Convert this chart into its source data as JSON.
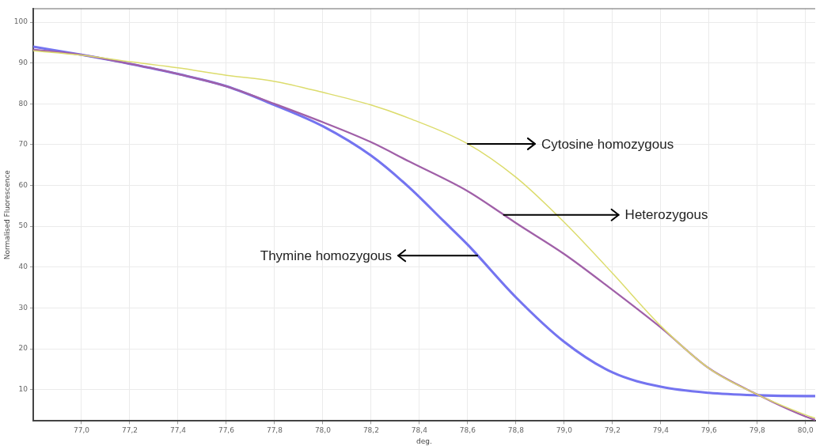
{
  "chart_data": {
    "type": "line",
    "xlabel": "deg.",
    "ylabel": "Normalised Fluorescence",
    "xlim": [
      76.8,
      80.04
    ],
    "ylim": [
      2.3,
      103.3
    ],
    "xticks": [
      {
        "value": 77.0,
        "label": "77,0"
      },
      {
        "value": 77.2,
        "label": "77,2"
      },
      {
        "value": 77.4,
        "label": "77,4"
      },
      {
        "value": 77.6,
        "label": "77,6"
      },
      {
        "value": 77.8,
        "label": "77,8"
      },
      {
        "value": 78.0,
        "label": "78,0"
      },
      {
        "value": 78.2,
        "label": "78,2"
      },
      {
        "value": 78.4,
        "label": "78,4"
      },
      {
        "value": 78.6,
        "label": "78,6"
      },
      {
        "value": 78.8,
        "label": "78,8"
      },
      {
        "value": 79.0,
        "label": "79,0"
      },
      {
        "value": 79.2,
        "label": "79,2"
      },
      {
        "value": 79.4,
        "label": "79,4"
      },
      {
        "value": 79.6,
        "label": "79,6"
      },
      {
        "value": 79.8,
        "label": "79,8"
      },
      {
        "value": 80.0,
        "label": "80,0"
      }
    ],
    "yticks": [
      10,
      20,
      30,
      40,
      50,
      60,
      70,
      80,
      90,
      100
    ],
    "grid": true,
    "legend": false,
    "marker": "none",
    "line_style": "solid",
    "series": [
      {
        "color": "#dcdc6c",
        "x": [
          76.8,
          77.0,
          77.2,
          77.4,
          77.6,
          77.8,
          78.0,
          78.2,
          78.36,
          78.6,
          78.8,
          79.0,
          79.2,
          79.4,
          79.6,
          79.8,
          80.0,
          80.04
        ],
        "values": [
          93,
          91.9,
          90.3,
          88.8,
          87,
          85.5,
          82.8,
          79.7,
          76.4,
          70.2,
          62,
          51,
          38.5,
          25.6,
          15.2,
          8.8,
          3.8,
          3
        ]
      },
      {
        "color": "#a060a8",
        "x": [
          76.8,
          77.0,
          77.2,
          77.4,
          77.6,
          77.8,
          78.0,
          78.2,
          78.36,
          78.6,
          78.75,
          78.8,
          79.0,
          79.2,
          79.4,
          79.6,
          79.8,
          80.0,
          80.04
        ],
        "values": [
          93.3,
          92,
          89.8,
          87.3,
          84.3,
          80,
          75.5,
          70.6,
          65.8,
          58.6,
          52.8,
          50.8,
          43.2,
          34.4,
          25.2,
          15.2,
          8.8,
          3.4,
          2.6
        ]
      },
      {
        "color": "#7474f0",
        "x": [
          76.8,
          77.0,
          77.2,
          77.4,
          77.6,
          77.8,
          78.0,
          78.2,
          78.36,
          78.5,
          78.6,
          78.8,
          79.0,
          79.2,
          79.4,
          79.6,
          79.8,
          80.0,
          80.04
        ],
        "values": [
          94,
          92,
          89.8,
          87.3,
          84.3,
          79.7,
          74.5,
          67.3,
          59.4,
          51.3,
          45.5,
          32.6,
          21.7,
          14.2,
          10.7,
          9.2,
          8.6,
          8.4,
          8.4
        ]
      }
    ],
    "annotations": [
      {
        "text": "Cytosine homozygous",
        "x": 78.6,
        "y": 70.2
      },
      {
        "text": "Heterozygous",
        "x": 78.75,
        "y": 52.8
      },
      {
        "text": "Thymine homozygous",
        "x": 78.64,
        "y": 42.8
      }
    ]
  }
}
